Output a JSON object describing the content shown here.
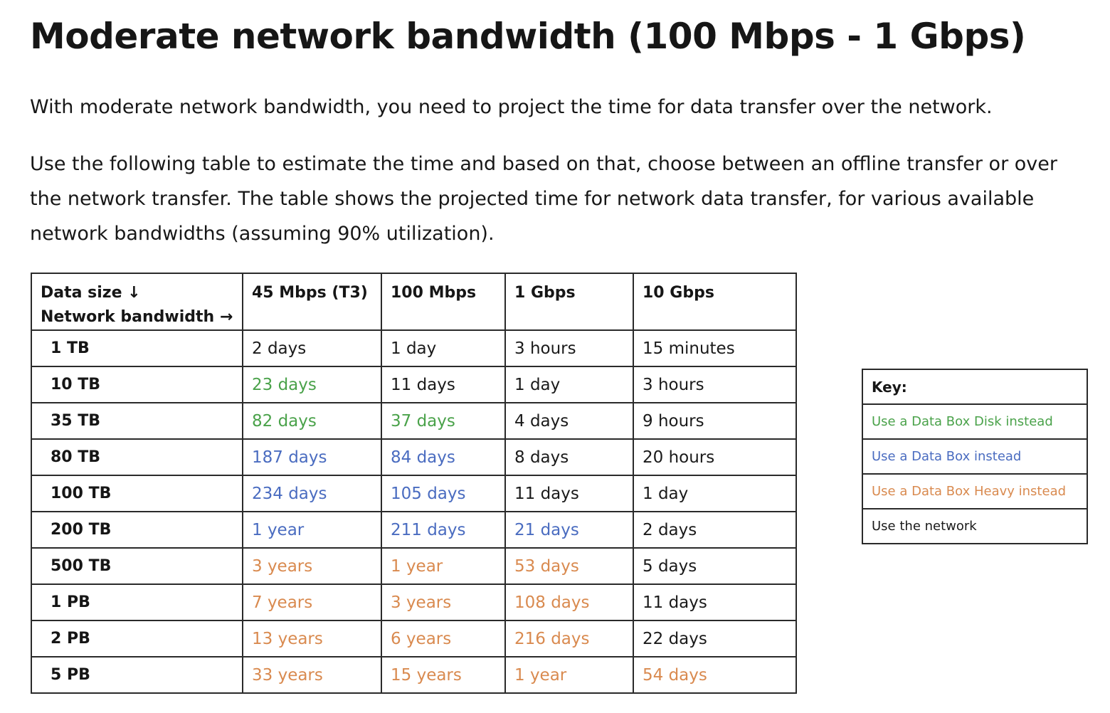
{
  "heading": "Moderate network bandwidth (100 Mbps - 1 Gbps)",
  "paragraph1": "With moderate network bandwidth, you need to project the time for data transfer over the network.",
  "paragraph2": "Use the following table to estimate the time and based on that, choose between an offline transfer or over the network transfer. The table shows the projected time for network data transfer, for various available network bandwidths (assuming 90% utilization).",
  "colors": {
    "disk": "#4aa24a",
    "box": "#4a6cc0",
    "heavy": "#d98a4f",
    "network": "#1a1a1a"
  },
  "table": {
    "corner_line1": "Data size ↓",
    "corner_line2": "Network bandwidth →",
    "columns": [
      "45 Mbps (T3)",
      "100 Mbps",
      "1 Gbps",
      "10 Gbps"
    ],
    "rows": [
      {
        "size": "1 TB",
        "cells": [
          {
            "text": "2 days",
            "cat": "network"
          },
          {
            "text": "1 day",
            "cat": "network"
          },
          {
            "text": "3 hours",
            "cat": "network"
          },
          {
            "text": "15 minutes",
            "cat": "network"
          }
        ]
      },
      {
        "size": "10 TB",
        "cells": [
          {
            "text": "23 days",
            "cat": "disk"
          },
          {
            "text": "11 days",
            "cat": "network"
          },
          {
            "text": "1 day",
            "cat": "network"
          },
          {
            "text": "3 hours",
            "cat": "network"
          }
        ]
      },
      {
        "size": "35 TB",
        "cells": [
          {
            "text": "82 days",
            "cat": "disk"
          },
          {
            "text": "37 days",
            "cat": "disk"
          },
          {
            "text": "4 days",
            "cat": "network"
          },
          {
            "text": "9 hours",
            "cat": "network"
          }
        ]
      },
      {
        "size": "80 TB",
        "cells": [
          {
            "text": "187 days",
            "cat": "box"
          },
          {
            "text": "84 days",
            "cat": "box"
          },
          {
            "text": "8 days",
            "cat": "network"
          },
          {
            "text": "20 hours",
            "cat": "network"
          }
        ]
      },
      {
        "size": "100 TB",
        "cells": [
          {
            "text": "234 days",
            "cat": "box"
          },
          {
            "text": "105 days",
            "cat": "box"
          },
          {
            "text": "11 days",
            "cat": "network"
          },
          {
            "text": "1 day",
            "cat": "network"
          }
        ]
      },
      {
        "size": "200 TB",
        "cells": [
          {
            "text": "1 year",
            "cat": "box"
          },
          {
            "text": "211 days",
            "cat": "box"
          },
          {
            "text": "21 days",
            "cat": "box"
          },
          {
            "text": "2 days",
            "cat": "network"
          }
        ]
      },
      {
        "size": "500 TB",
        "cells": [
          {
            "text": "3 years",
            "cat": "heavy"
          },
          {
            "text": "1 year",
            "cat": "heavy"
          },
          {
            "text": "53 days",
            "cat": "heavy"
          },
          {
            "text": "5 days",
            "cat": "network"
          }
        ]
      },
      {
        "size": "1 PB",
        "cells": [
          {
            "text": "7 years",
            "cat": "heavy"
          },
          {
            "text": "3 years",
            "cat": "heavy"
          },
          {
            "text": "108 days",
            "cat": "heavy"
          },
          {
            "text": "11 days",
            "cat": "network"
          }
        ]
      },
      {
        "size": "2 PB",
        "cells": [
          {
            "text": "13 years",
            "cat": "heavy"
          },
          {
            "text": "6 years",
            "cat": "heavy"
          },
          {
            "text": "216 days",
            "cat": "heavy"
          },
          {
            "text": "22 days",
            "cat": "network"
          }
        ]
      },
      {
        "size": "5 PB",
        "cells": [
          {
            "text": "33 years",
            "cat": "heavy"
          },
          {
            "text": "15 years",
            "cat": "heavy"
          },
          {
            "text": "1 year",
            "cat": "heavy"
          },
          {
            "text": "54 days",
            "cat": "heavy"
          }
        ]
      }
    ]
  },
  "key": {
    "title": "Key:",
    "items": [
      {
        "label": "Use a Data Box Disk instead",
        "cat": "disk"
      },
      {
        "label": "Use a Data Box instead",
        "cat": "box"
      },
      {
        "label": "Use a Data Box Heavy instead",
        "cat": "heavy"
      },
      {
        "label": "Use the network",
        "cat": "network"
      }
    ]
  }
}
